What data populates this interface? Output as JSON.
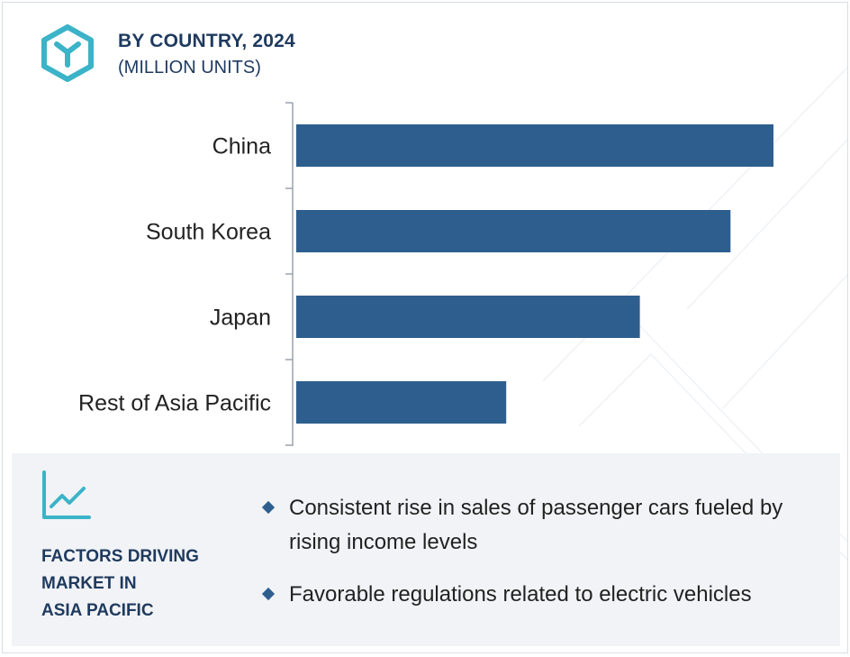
{
  "header": {
    "title": "BY COUNTRY, 2024",
    "subtitle": "(MILLION UNITS)",
    "logo_icon": "cube-y-logo-icon"
  },
  "colors": {
    "bar": "#2e5e8e",
    "accent": "#3bb3c8",
    "heading": "#1f3a5f",
    "panel": "#f1f3f6"
  },
  "chart_data": {
    "type": "bar",
    "orientation": "horizontal",
    "title": "BY COUNTRY, 2024",
    "subtitle": "(MILLION UNITS)",
    "categories": [
      "China",
      "South Korea",
      "Japan",
      "Rest of Asia Pacific"
    ],
    "values": [
      100,
      91,
      72,
      44
    ],
    "xlim": [
      0,
      100
    ],
    "grid": false,
    "legend": "none"
  },
  "factors": {
    "icon": "line-chart-trend-icon",
    "heading": [
      "FACTORS DRIVING",
      "MARKET IN",
      "ASIA PACIFIC"
    ],
    "bullets": [
      "Consistent rise in sales of passenger cars fueled by rising income levels",
      "Favorable regulations related to electric vehicles"
    ]
  }
}
